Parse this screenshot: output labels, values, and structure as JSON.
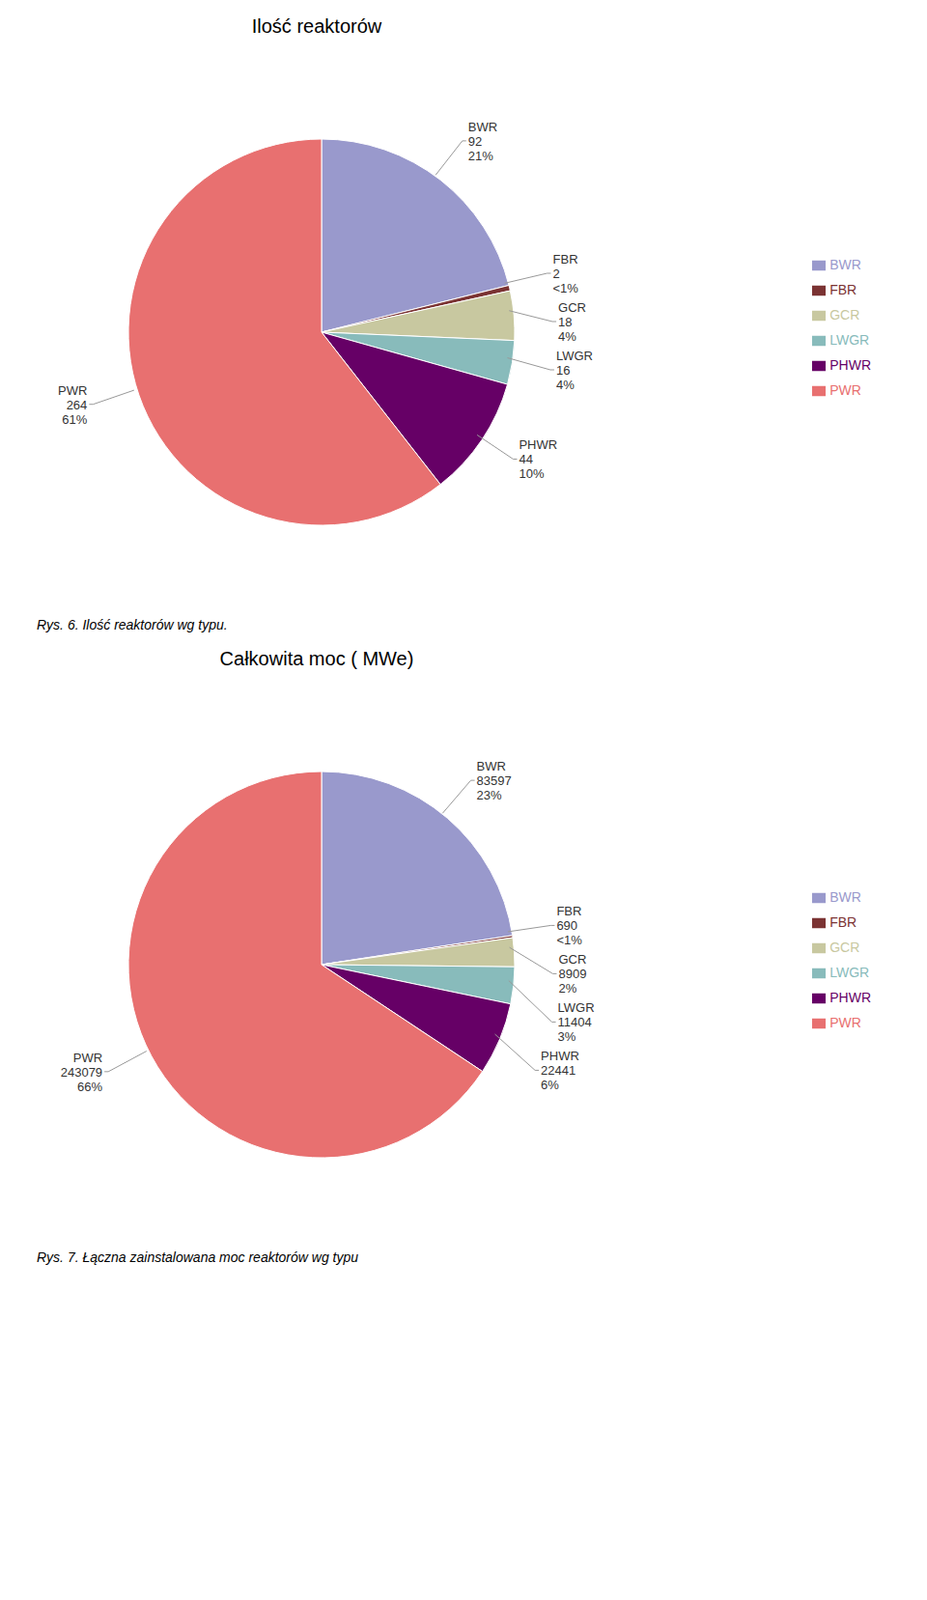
{
  "chart_data": [
    {
      "type": "pie",
      "title": "Ilość reaktorów",
      "categories": [
        "BWR",
        "FBR",
        "GCR",
        "LWGR",
        "PHWR",
        "PWR"
      ],
      "values": [
        92,
        2,
        18,
        16,
        44,
        264
      ],
      "value_labels": [
        "92\n21%",
        "2\n<1%",
        "18\n4%",
        "16\n4%",
        "44\n10%",
        "264\n61%"
      ],
      "colors": [
        "#9999cc",
        "#7b3333",
        "#c8c8a0",
        "#88bbbb",
        "#660066",
        "#e87070"
      ],
      "data_labels": true,
      "legend": "right",
      "caption": "Rys. 6. Ilość reaktorów wg typu."
    },
    {
      "type": "pie",
      "title": "Całkowita moc ( MWe)",
      "categories": [
        "BWR",
        "FBR",
        "GCR",
        "LWGR",
        "PHWR",
        "PWR"
      ],
      "values": [
        83597,
        690,
        8909,
        11404,
        22441,
        243079
      ],
      "value_labels": [
        "83597\n23%",
        "690\n<1%",
        "8909\n2%",
        "11404\n3%",
        "22441\n6%",
        "243079\n66%"
      ],
      "colors": [
        "#9999cc",
        "#7b3333",
        "#c8c8a0",
        "#88bbbb",
        "#660066",
        "#e87070"
      ],
      "data_labels": true,
      "legend": "right",
      "caption": "Rys. 7. Łączna zainstalowana moc reaktorów wg typu"
    }
  ]
}
